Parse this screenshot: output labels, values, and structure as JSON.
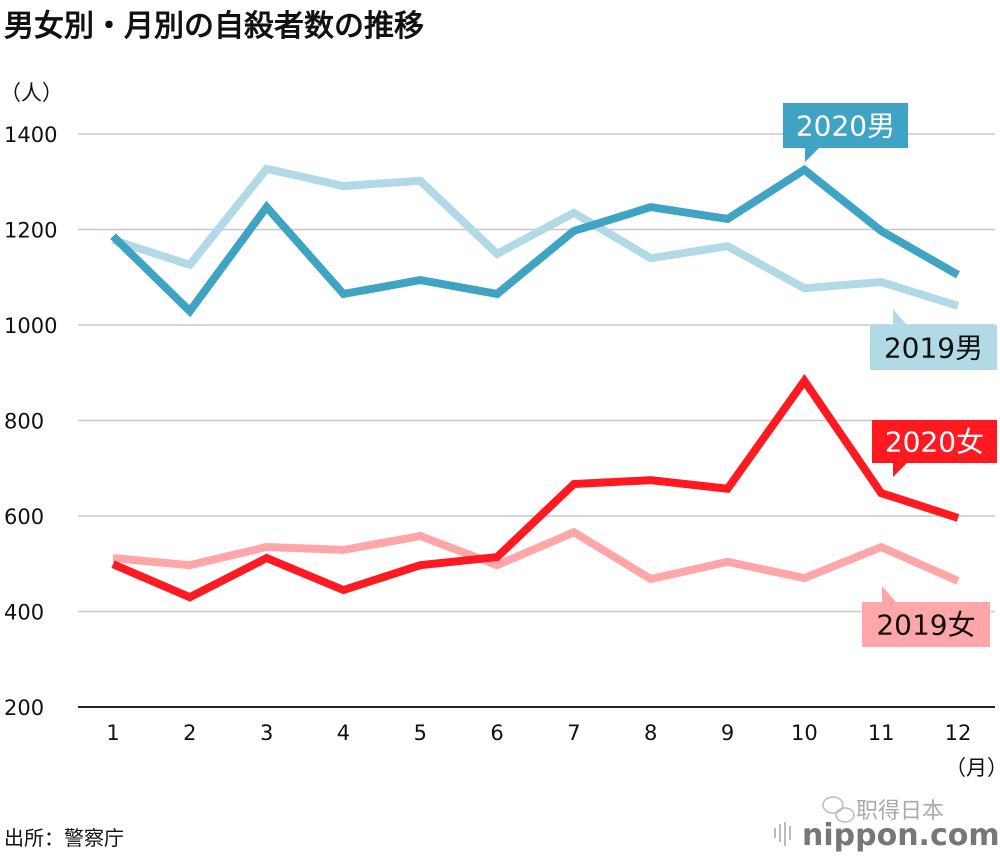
{
  "chart_data": {
    "type": "line",
    "title": "男女別・月別の自殺者数の推移",
    "ylabel": "（人）",
    "xlabel": "（月）",
    "categories": [
      "1",
      "2",
      "3",
      "4",
      "5",
      "6",
      "7",
      "8",
      "9",
      "10",
      "11",
      "12"
    ],
    "ylim": [
      200,
      1400
    ],
    "yticks": [
      "200",
      "400",
      "600",
      "800",
      "1000",
      "1200",
      "1400"
    ],
    "grid": true,
    "series": [
      {
        "name": "2019男",
        "color": "#b1d9e6",
        "values": [
          1178,
          1126,
          1327,
          1291,
          1302,
          1149,
          1235,
          1140,
          1165,
          1077,
          1090,
          1040
        ]
      },
      {
        "name": "2020男",
        "color": "#3fa3c4",
        "values": [
          1186,
          1029,
          1247,
          1065,
          1094,
          1065,
          1197,
          1247,
          1222,
          1325,
          1197,
          1105
        ]
      },
      {
        "name": "2019女",
        "color": "#ffa6a8",
        "values": [
          512,
          497,
          535,
          529,
          558,
          497,
          566,
          468,
          504,
          470,
          535,
          464
        ]
      },
      {
        "name": "2020女",
        "color": "#ff1a22",
        "values": [
          499,
          430,
          512,
          445,
          497,
          514,
          667,
          675,
          657,
          883,
          648,
          596
        ]
      }
    ],
    "source": "出所：警察庁"
  },
  "watermark": {
    "wechat": "职得日本",
    "logo": "nippon.com"
  }
}
